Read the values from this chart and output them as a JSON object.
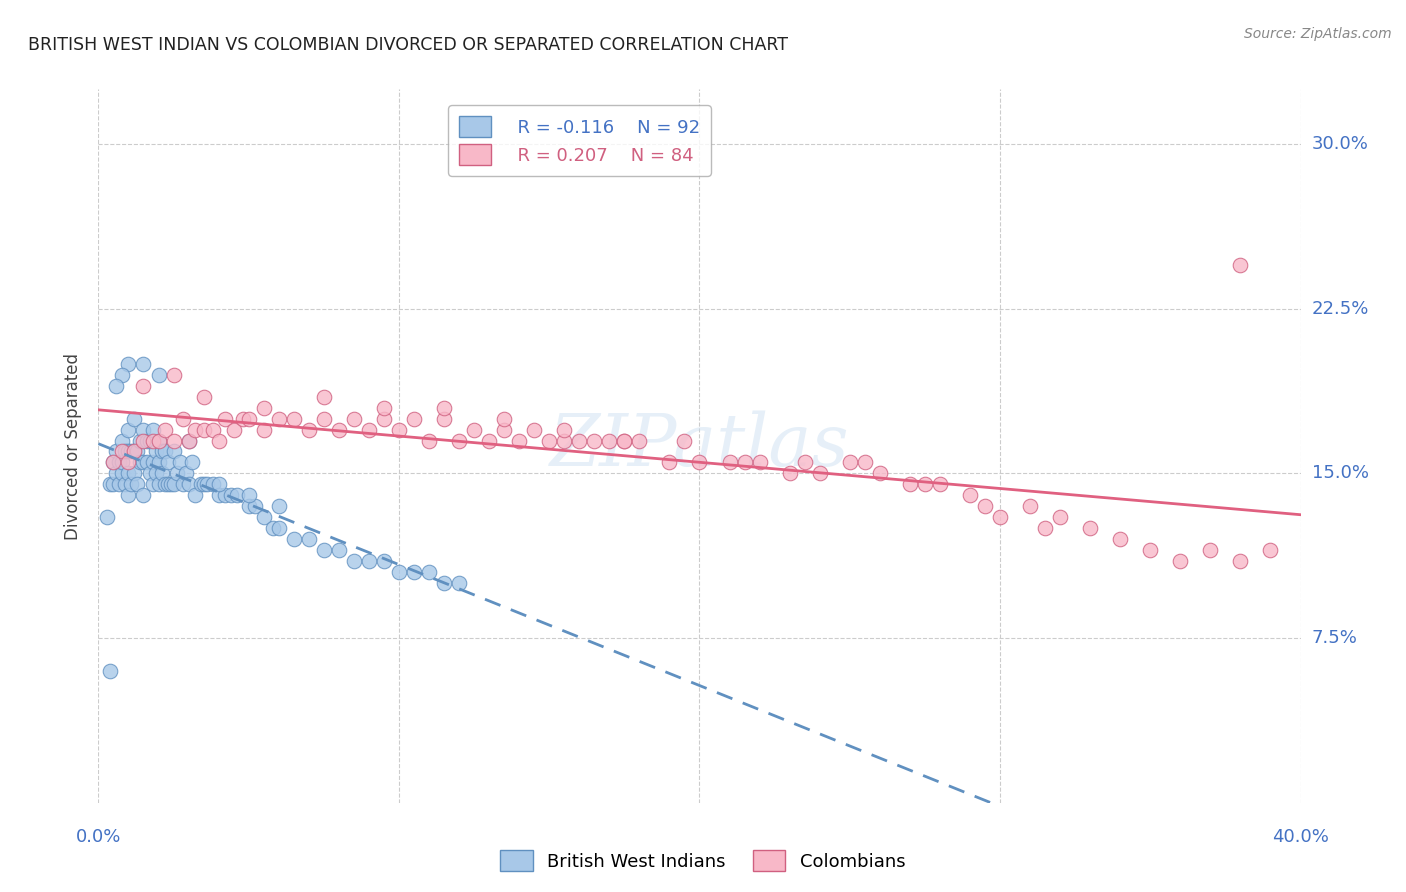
{
  "title": "BRITISH WEST INDIAN VS COLOMBIAN DIVORCED OR SEPARATED CORRELATION CHART",
  "source": "Source: ZipAtlas.com",
  "ylabel": "Divorced or Separated",
  "ytick_labels": [
    "30.0%",
    "22.5%",
    "15.0%",
    "7.5%"
  ],
  "ytick_values": [
    0.3,
    0.225,
    0.15,
    0.075
  ],
  "xlim": [
    0.0,
    0.4
  ],
  "ylim": [
    0.0,
    0.325
  ],
  "background_color": "#ffffff",
  "grid_color": "#cccccc",
  "title_color": "#222222",
  "axis_label_color": "#4472c4",
  "watermark": "ZIPatlas",
  "legend_r1": "R = -0.116",
  "legend_n1": "N = 92",
  "legend_r2": "R = 0.207",
  "legend_n2": "N = 84",
  "series1_name": "British West Indians",
  "series2_name": "Colombians",
  "series1_color": "#a8c8e8",
  "series2_color": "#f8b8c8",
  "series1_edge_color": "#6090c0",
  "series2_edge_color": "#d06080",
  "trend1_color": "#6090c0",
  "trend2_color": "#e06080",
  "series1_x": [
    0.003,
    0.004,
    0.005,
    0.005,
    0.006,
    0.006,
    0.007,
    0.007,
    0.008,
    0.008,
    0.008,
    0.009,
    0.009,
    0.01,
    0.01,
    0.01,
    0.01,
    0.011,
    0.011,
    0.012,
    0.012,
    0.012,
    0.013,
    0.013,
    0.014,
    0.014,
    0.015,
    0.015,
    0.015,
    0.016,
    0.016,
    0.017,
    0.017,
    0.018,
    0.018,
    0.018,
    0.019,
    0.019,
    0.02,
    0.02,
    0.02,
    0.021,
    0.021,
    0.022,
    0.022,
    0.023,
    0.023,
    0.024,
    0.025,
    0.025,
    0.026,
    0.027,
    0.028,
    0.029,
    0.03,
    0.031,
    0.032,
    0.034,
    0.035,
    0.036,
    0.038,
    0.04,
    0.042,
    0.044,
    0.046,
    0.05,
    0.052,
    0.055,
    0.058,
    0.06,
    0.065,
    0.07,
    0.075,
    0.08,
    0.085,
    0.09,
    0.095,
    0.1,
    0.105,
    0.11,
    0.115,
    0.12,
    0.02,
    0.015,
    0.01,
    0.008,
    0.006,
    0.004,
    0.03,
    0.04,
    0.05,
    0.06
  ],
  "series1_y": [
    0.13,
    0.145,
    0.145,
    0.155,
    0.15,
    0.16,
    0.145,
    0.155,
    0.15,
    0.155,
    0.165,
    0.145,
    0.16,
    0.14,
    0.15,
    0.16,
    0.17,
    0.145,
    0.16,
    0.15,
    0.16,
    0.175,
    0.145,
    0.16,
    0.155,
    0.165,
    0.14,
    0.155,
    0.17,
    0.155,
    0.165,
    0.15,
    0.165,
    0.145,
    0.155,
    0.17,
    0.15,
    0.16,
    0.145,
    0.155,
    0.165,
    0.15,
    0.16,
    0.145,
    0.16,
    0.145,
    0.155,
    0.145,
    0.145,
    0.16,
    0.15,
    0.155,
    0.145,
    0.15,
    0.145,
    0.155,
    0.14,
    0.145,
    0.145,
    0.145,
    0.145,
    0.14,
    0.14,
    0.14,
    0.14,
    0.135,
    0.135,
    0.13,
    0.125,
    0.125,
    0.12,
    0.12,
    0.115,
    0.115,
    0.11,
    0.11,
    0.11,
    0.105,
    0.105,
    0.105,
    0.1,
    0.1,
    0.195,
    0.2,
    0.2,
    0.195,
    0.19,
    0.06,
    0.165,
    0.145,
    0.14,
    0.135
  ],
  "series2_x": [
    0.005,
    0.008,
    0.01,
    0.012,
    0.015,
    0.018,
    0.02,
    0.022,
    0.025,
    0.028,
    0.03,
    0.032,
    0.035,
    0.038,
    0.04,
    0.042,
    0.045,
    0.048,
    0.05,
    0.055,
    0.06,
    0.065,
    0.07,
    0.075,
    0.08,
    0.085,
    0.09,
    0.095,
    0.1,
    0.105,
    0.11,
    0.115,
    0.12,
    0.125,
    0.13,
    0.135,
    0.14,
    0.145,
    0.15,
    0.155,
    0.16,
    0.165,
    0.17,
    0.175,
    0.18,
    0.19,
    0.2,
    0.21,
    0.22,
    0.23,
    0.24,
    0.25,
    0.26,
    0.27,
    0.28,
    0.29,
    0.3,
    0.31,
    0.32,
    0.33,
    0.34,
    0.35,
    0.36,
    0.37,
    0.38,
    0.39,
    0.015,
    0.025,
    0.035,
    0.055,
    0.075,
    0.095,
    0.115,
    0.135,
    0.155,
    0.175,
    0.195,
    0.215,
    0.235,
    0.255,
    0.275,
    0.295,
    0.315,
    0.38
  ],
  "series2_y": [
    0.155,
    0.16,
    0.155,
    0.16,
    0.165,
    0.165,
    0.165,
    0.17,
    0.165,
    0.175,
    0.165,
    0.17,
    0.17,
    0.17,
    0.165,
    0.175,
    0.17,
    0.175,
    0.175,
    0.17,
    0.175,
    0.175,
    0.17,
    0.175,
    0.17,
    0.175,
    0.17,
    0.175,
    0.17,
    0.175,
    0.165,
    0.175,
    0.165,
    0.17,
    0.165,
    0.17,
    0.165,
    0.17,
    0.165,
    0.165,
    0.165,
    0.165,
    0.165,
    0.165,
    0.165,
    0.155,
    0.155,
    0.155,
    0.155,
    0.15,
    0.15,
    0.155,
    0.15,
    0.145,
    0.145,
    0.14,
    0.13,
    0.135,
    0.13,
    0.125,
    0.12,
    0.115,
    0.11,
    0.115,
    0.11,
    0.115,
    0.19,
    0.195,
    0.185,
    0.18,
    0.185,
    0.18,
    0.18,
    0.175,
    0.17,
    0.165,
    0.165,
    0.155,
    0.155,
    0.155,
    0.145,
    0.135,
    0.125,
    0.245
  ]
}
